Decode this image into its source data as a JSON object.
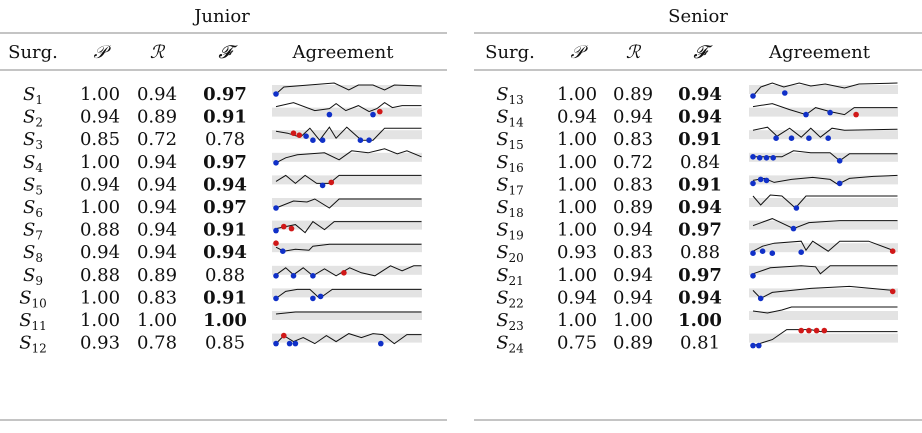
{
  "groups": [
    {
      "title": "Junior",
      "headers": {
        "surg": "Surg.",
        "p": "𝒫",
        "r": "ℛ",
        "f": "𝓕",
        "agreement": "Agreement"
      },
      "rows": [
        {
          "id": "S",
          "sub": "1",
          "p": "1.00",
          "r": "0.94",
          "f": "0.97",
          "f_bold": true
        },
        {
          "id": "S",
          "sub": "2",
          "p": "0.94",
          "r": "0.89",
          "f": "0.91",
          "f_bold": true
        },
        {
          "id": "S",
          "sub": "3",
          "p": "0.85",
          "r": "0.72",
          "f": "0.78",
          "f_bold": false
        },
        {
          "id": "S",
          "sub": "4",
          "p": "1.00",
          "r": "0.94",
          "f": "0.97",
          "f_bold": true
        },
        {
          "id": "S",
          "sub": "5",
          "p": "0.94",
          "r": "0.94",
          "f": "0.94",
          "f_bold": true
        },
        {
          "id": "S",
          "sub": "6",
          "p": "1.00",
          "r": "0.94",
          "f": "0.97",
          "f_bold": true
        },
        {
          "id": "S",
          "sub": "7",
          "p": "0.88",
          "r": "0.94",
          "f": "0.91",
          "f_bold": true
        },
        {
          "id": "S",
          "sub": "8",
          "p": "0.94",
          "r": "0.94",
          "f": "0.94",
          "f_bold": true
        },
        {
          "id": "S",
          "sub": "9",
          "p": "0.88",
          "r": "0.89",
          "f": "0.88",
          "f_bold": false
        },
        {
          "id": "S",
          "sub": "10",
          "p": "1.00",
          "r": "0.83",
          "f": "0.91",
          "f_bold": true
        },
        {
          "id": "S",
          "sub": "11",
          "p": "1.00",
          "r": "1.00",
          "f": "1.00",
          "f_bold": true
        },
        {
          "id": "S",
          "sub": "12",
          "p": "0.93",
          "r": "0.78",
          "f": "0.85",
          "f_bold": false
        }
      ]
    },
    {
      "title": "Senior",
      "headers": {
        "surg": "Surg.",
        "p": "𝒫",
        "r": "ℛ",
        "f": "𝓕",
        "agreement": "Agreement"
      },
      "rows": [
        {
          "id": "S",
          "sub": "13",
          "p": "1.00",
          "r": "0.89",
          "f": "0.94",
          "f_bold": true
        },
        {
          "id": "S",
          "sub": "14",
          "p": "0.94",
          "r": "0.94",
          "f": "0.94",
          "f_bold": true
        },
        {
          "id": "S",
          "sub": "15",
          "p": "1.00",
          "r": "0.83",
          "f": "0.91",
          "f_bold": true
        },
        {
          "id": "S",
          "sub": "16",
          "p": "1.00",
          "r": "0.72",
          "f": "0.84",
          "f_bold": false
        },
        {
          "id": "S",
          "sub": "17",
          "p": "1.00",
          "r": "0.83",
          "f": "0.91",
          "f_bold": true
        },
        {
          "id": "S",
          "sub": "18",
          "p": "1.00",
          "r": "0.89",
          "f": "0.94",
          "f_bold": true
        },
        {
          "id": "S",
          "sub": "19",
          "p": "1.00",
          "r": "0.94",
          "f": "0.97",
          "f_bold": true
        },
        {
          "id": "S",
          "sub": "20",
          "p": "0.93",
          "r": "0.83",
          "f": "0.88",
          "f_bold": false
        },
        {
          "id": "S",
          "sub": "21",
          "p": "1.00",
          "r": "0.94",
          "f": "0.97",
          "f_bold": true
        },
        {
          "id": "S",
          "sub": "22",
          "p": "0.94",
          "r": "0.94",
          "f": "0.94",
          "f_bold": true
        },
        {
          "id": "S",
          "sub": "23",
          "p": "1.00",
          "r": "1.00",
          "f": "1.00",
          "f_bold": true
        },
        {
          "id": "S",
          "sub": "24",
          "p": "0.75",
          "r": "0.89",
          "f": "0.81",
          "f_bold": false
        }
      ]
    }
  ],
  "colors": {
    "band": "#e3e3e3",
    "line": "#111111",
    "miss": "#1030c8",
    "extra": "#d01818"
  }
}
